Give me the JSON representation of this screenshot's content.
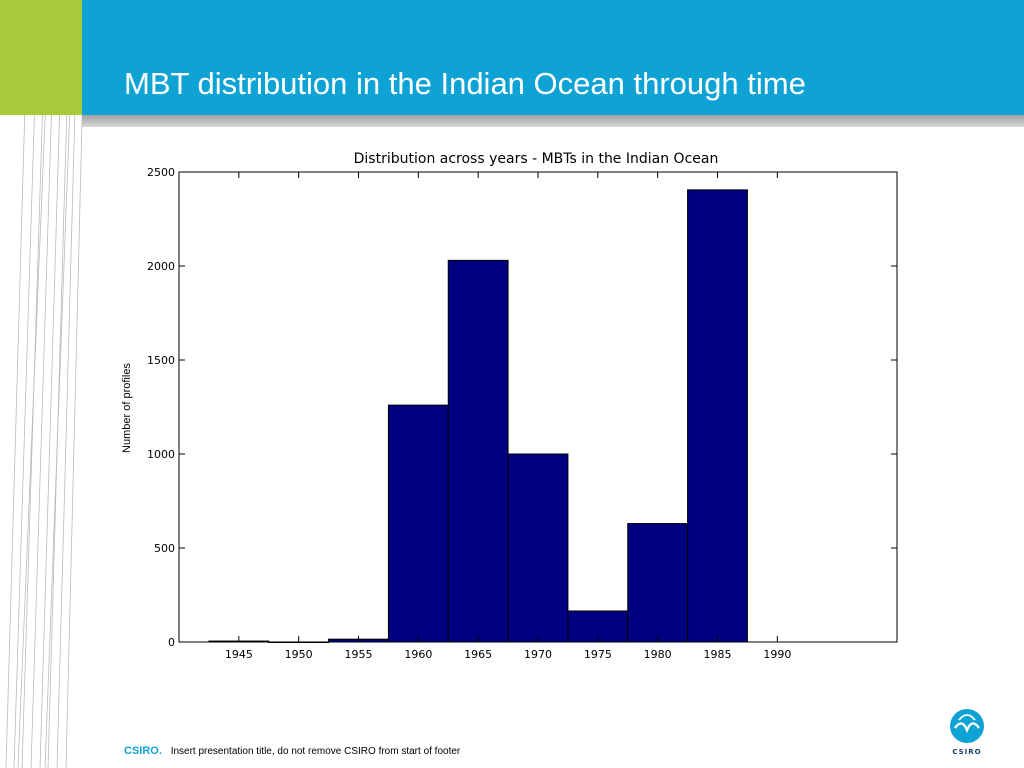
{
  "slide": {
    "title": "MBT distribution in the Indian Ocean through time",
    "colors": {
      "green": "#a8c93a",
      "blue": "#0ea3d4",
      "bar": "#000080"
    }
  },
  "footer": {
    "brand": "CSIRO.",
    "text": "Insert presentation title, do not remove CSIRO from start of footer"
  },
  "logo": {
    "icon": "csiro-logo-icon",
    "text": "CSIRO"
  },
  "chart_data": {
    "type": "bar",
    "title": "Distribution across years - MBTs in the Indian Ocean",
    "xlabel": "",
    "ylabel": "Number of profiles",
    "categories": [
      "1945",
      "1950",
      "1955",
      "1960",
      "1965",
      "1970",
      "1975",
      "1980",
      "1985",
      "1990"
    ],
    "x_tick_labels": [
      "1945",
      "1950",
      "1955",
      "1960",
      "1965",
      "1970",
      "1975",
      "1980",
      "1985",
      "1990"
    ],
    "y_tick_labels": [
      "0",
      "500",
      "1000",
      "1500",
      "2000",
      "2500"
    ],
    "bars": [
      {
        "x": 1945,
        "value": 5
      },
      {
        "x": 1950,
        "value": 0
      },
      {
        "x": 1955,
        "value": 15
      },
      {
        "x": 1960,
        "value": 1260
      },
      {
        "x": 1965,
        "value": 2030
      },
      {
        "x": 1970,
        "value": 1000
      },
      {
        "x": 1975,
        "value": 165
      },
      {
        "x": 1980,
        "value": 630
      },
      {
        "x": 1985,
        "value": 2405
      }
    ],
    "bin_width": 5,
    "xlim": [
      1940,
      2000
    ],
    "ylim": [
      0,
      2500
    ],
    "y_ticks": [
      0,
      500,
      1000,
      1500,
      2000,
      2500
    ],
    "x_ticks": [
      1945,
      1950,
      1955,
      1960,
      1965,
      1970,
      1975,
      1980,
      1985,
      1990
    ],
    "bar_color": "#000080",
    "grid": false
  }
}
